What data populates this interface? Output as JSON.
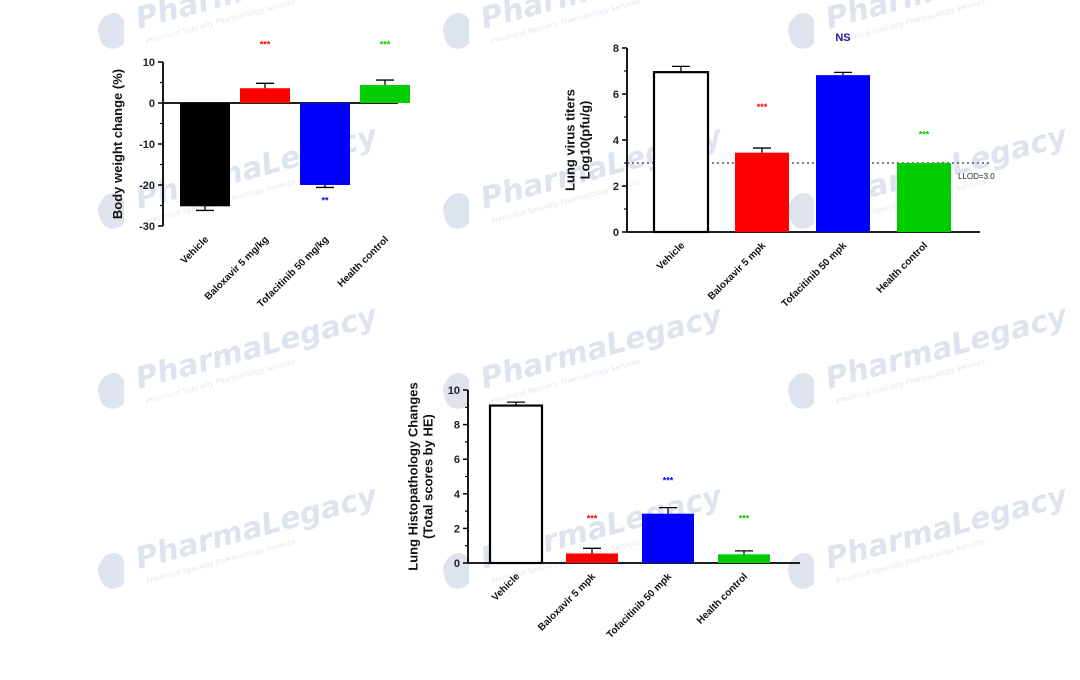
{
  "watermark": {
    "brand": "PharmaLegacy",
    "tagline": "Preclinical Specialty Pharmacology Services"
  },
  "chart_data": [
    {
      "type": "bar",
      "ylabel": "Body weight change (%)",
      "categories": [
        "Vehicle",
        "Baloxavir 5 mg/kg",
        "Tofacitinib 50 mg/kg",
        "Health control"
      ],
      "values": [
        -25.2,
        3.6,
        -20.0,
        4.4
      ],
      "errors": [
        1.0,
        1.2,
        0.6,
        1.2
      ],
      "colors": [
        "#000000",
        "#ff0000",
        "#0000ff",
        "#00cc00"
      ],
      "filled": [
        true,
        true,
        true,
        true
      ],
      "ylim": [
        -30,
        10
      ],
      "yticks": [
        -30,
        -20,
        -10,
        0,
        10
      ],
      "significance": [
        {
          "index": 1,
          "text": "***",
          "color": "#ff0000",
          "at": 13.5
        },
        {
          "index": 2,
          "text": "**",
          "color": "#0000ff",
          "at": -24.5
        },
        {
          "index": 3,
          "text": "***",
          "color": "#00cc00",
          "at": 13.5
        }
      ]
    },
    {
      "type": "bar",
      "ylabel": [
        "Lung virus titers",
        "Log10(pfu/g)"
      ],
      "categories": [
        "Vehicle",
        "Baloxavir 5 mpk",
        "Tofacitinib 50 mpk",
        "Health control"
      ],
      "values": [
        6.95,
        3.45,
        6.82,
        3.0
      ],
      "errors": [
        0.25,
        0.2,
        0.12,
        0.0
      ],
      "colors": [
        "#000000",
        "#ff0000",
        "#0000ff",
        "#00cc00"
      ],
      "filled": [
        false,
        true,
        true,
        true
      ],
      "ylim": [
        0,
        8
      ],
      "yticks": [
        0,
        2,
        4,
        6,
        8
      ],
      "reference_line": {
        "value": 3.0,
        "label": "LLOD=3.0"
      },
      "significance": [
        {
          "index": 1,
          "text": "***",
          "color": "#ff0000",
          "at": 5.3
        },
        {
          "index": 2,
          "text": "NS",
          "color": "#1a1aa0",
          "at": 8.3
        },
        {
          "index": 3,
          "text": "***",
          "color": "#00cc00",
          "at": 4.1
        }
      ]
    },
    {
      "type": "bar",
      "ylabel": [
        "Lung Histopathology Changes",
        "(Total scores by HE)"
      ],
      "categories": [
        "Vehicle",
        "Baloxavir 5 mpk",
        "Tofacitinib 50 mpk",
        "Health control"
      ],
      "values": [
        9.1,
        0.55,
        2.85,
        0.5
      ],
      "errors": [
        0.2,
        0.3,
        0.35,
        0.2
      ],
      "colors": [
        "#000000",
        "#ff0000",
        "#0000ff",
        "#00cc00"
      ],
      "filled": [
        false,
        true,
        true,
        true
      ],
      "ylim": [
        0,
        10
      ],
      "yticks": [
        0,
        2,
        4,
        6,
        8,
        10
      ],
      "significance": [
        {
          "index": 1,
          "text": "***",
          "color": "#ff0000",
          "at": 2.4
        },
        {
          "index": 2,
          "text": "***",
          "color": "#0000ff",
          "at": 4.6
        },
        {
          "index": 3,
          "text": "***",
          "color": "#00cc00",
          "at": 2.4
        }
      ]
    }
  ]
}
